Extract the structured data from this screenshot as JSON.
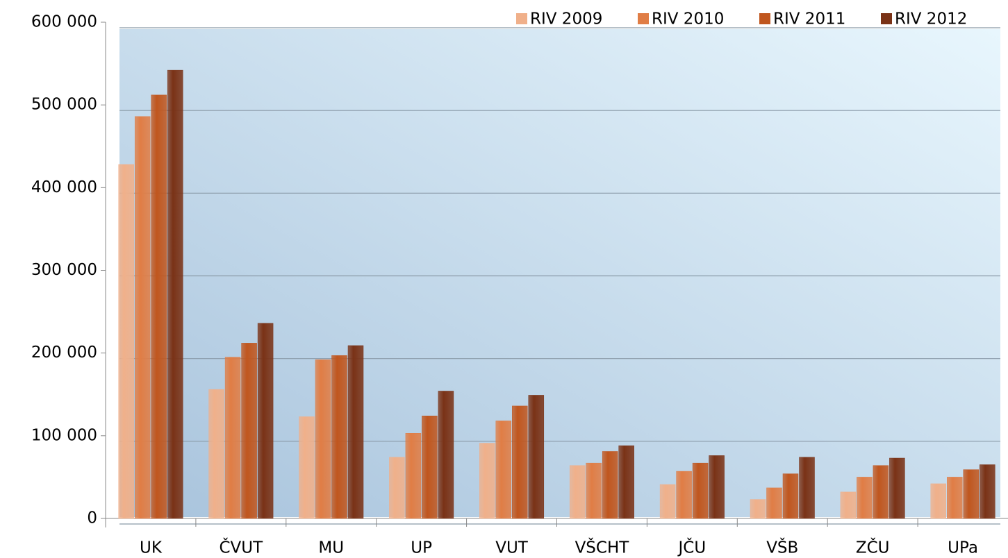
{
  "chart_data": {
    "type": "bar",
    "categories": [
      "UK",
      "ČVUT",
      "MU",
      "UP",
      "VUT",
      "VŠCHT",
      "JČU",
      "VŠB",
      "ZČU",
      "UPa"
    ],
    "series": [
      {
        "name": "RIV 2009",
        "color": "#f0b08a",
        "values": [
          428000,
          156000,
          123000,
          74000,
          91000,
          64000,
          41000,
          23000,
          32000,
          42000
        ]
      },
      {
        "name": "RIV 2010",
        "color": "#e07d45",
        "values": [
          486000,
          195000,
          192000,
          103000,
          118000,
          67000,
          57000,
          37000,
          50000,
          50000
        ]
      },
      {
        "name": "RIV 2011",
        "color": "#c0561e",
        "values": [
          512000,
          212000,
          197000,
          124000,
          136000,
          81000,
          67000,
          54000,
          64000,
          59000
        ]
      },
      {
        "name": "RIV 2012",
        "color": "#7a3216",
        "values": [
          542000,
          236000,
          209000,
          154000,
          149000,
          88000,
          76000,
          74000,
          73000,
          65000
        ]
      }
    ],
    "ylim": [
      0,
      600000
    ],
    "yticks": [
      {
        "value": 0,
        "label": "0"
      },
      {
        "value": 100000,
        "label": "100 000"
      },
      {
        "value": 200000,
        "label": "200 000"
      },
      {
        "value": 300000,
        "label": "300 000"
      },
      {
        "value": 400000,
        "label": "400 000"
      },
      {
        "value": 500000,
        "label": "500 000"
      },
      {
        "value": 600000,
        "label": "600 000"
      }
    ],
    "grid": true,
    "legend": "top-right"
  }
}
